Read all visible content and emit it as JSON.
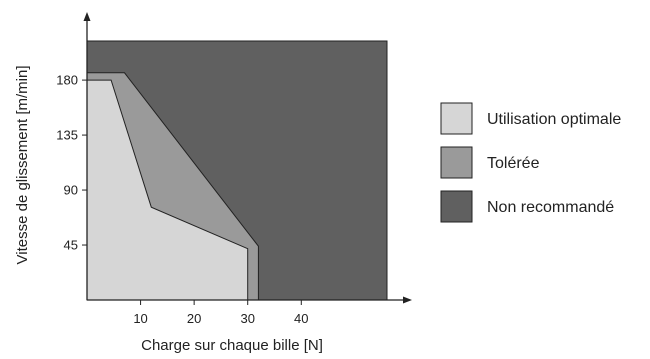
{
  "chart_data": {
    "type": "area",
    "xlabel": "Charge sur chaque bille [N]",
    "ylabel": "Vitesse de glissement [m/min]",
    "x_ticks": [
      10,
      20,
      30,
      40
    ],
    "y_ticks": [
      45,
      90,
      135,
      180
    ],
    "xlim": [
      0,
      56
    ],
    "ylim": [
      0,
      212
    ],
    "regions": [
      {
        "name": "Non recommandé",
        "color": "#606060",
        "polygon": [
          [
            0,
            0
          ],
          [
            56,
            0
          ],
          [
            56,
            212
          ],
          [
            0,
            212
          ]
        ]
      },
      {
        "name": "Tolérée",
        "color": "#9a9a9a",
        "polygon": [
          [
            0,
            0
          ],
          [
            32,
            0
          ],
          [
            32,
            44
          ],
          [
            7,
            186
          ],
          [
            0,
            186
          ]
        ]
      },
      {
        "name": "Utilisation optimale",
        "color": "#d6d6d6",
        "polygon": [
          [
            0,
            0
          ],
          [
            30,
            0
          ],
          [
            30,
            42
          ],
          [
            12,
            76
          ],
          [
            4.5,
            180
          ],
          [
            0,
            180
          ]
        ]
      }
    ],
    "legend": {
      "placement": "right",
      "items": [
        {
          "label": "Utilisation optimale",
          "color": "#d6d6d6"
        },
        {
          "label": "Tolérée",
          "color": "#9a9a9a"
        },
        {
          "label": "Non recommandé",
          "color": "#606060"
        }
      ]
    },
    "grid": false
  }
}
